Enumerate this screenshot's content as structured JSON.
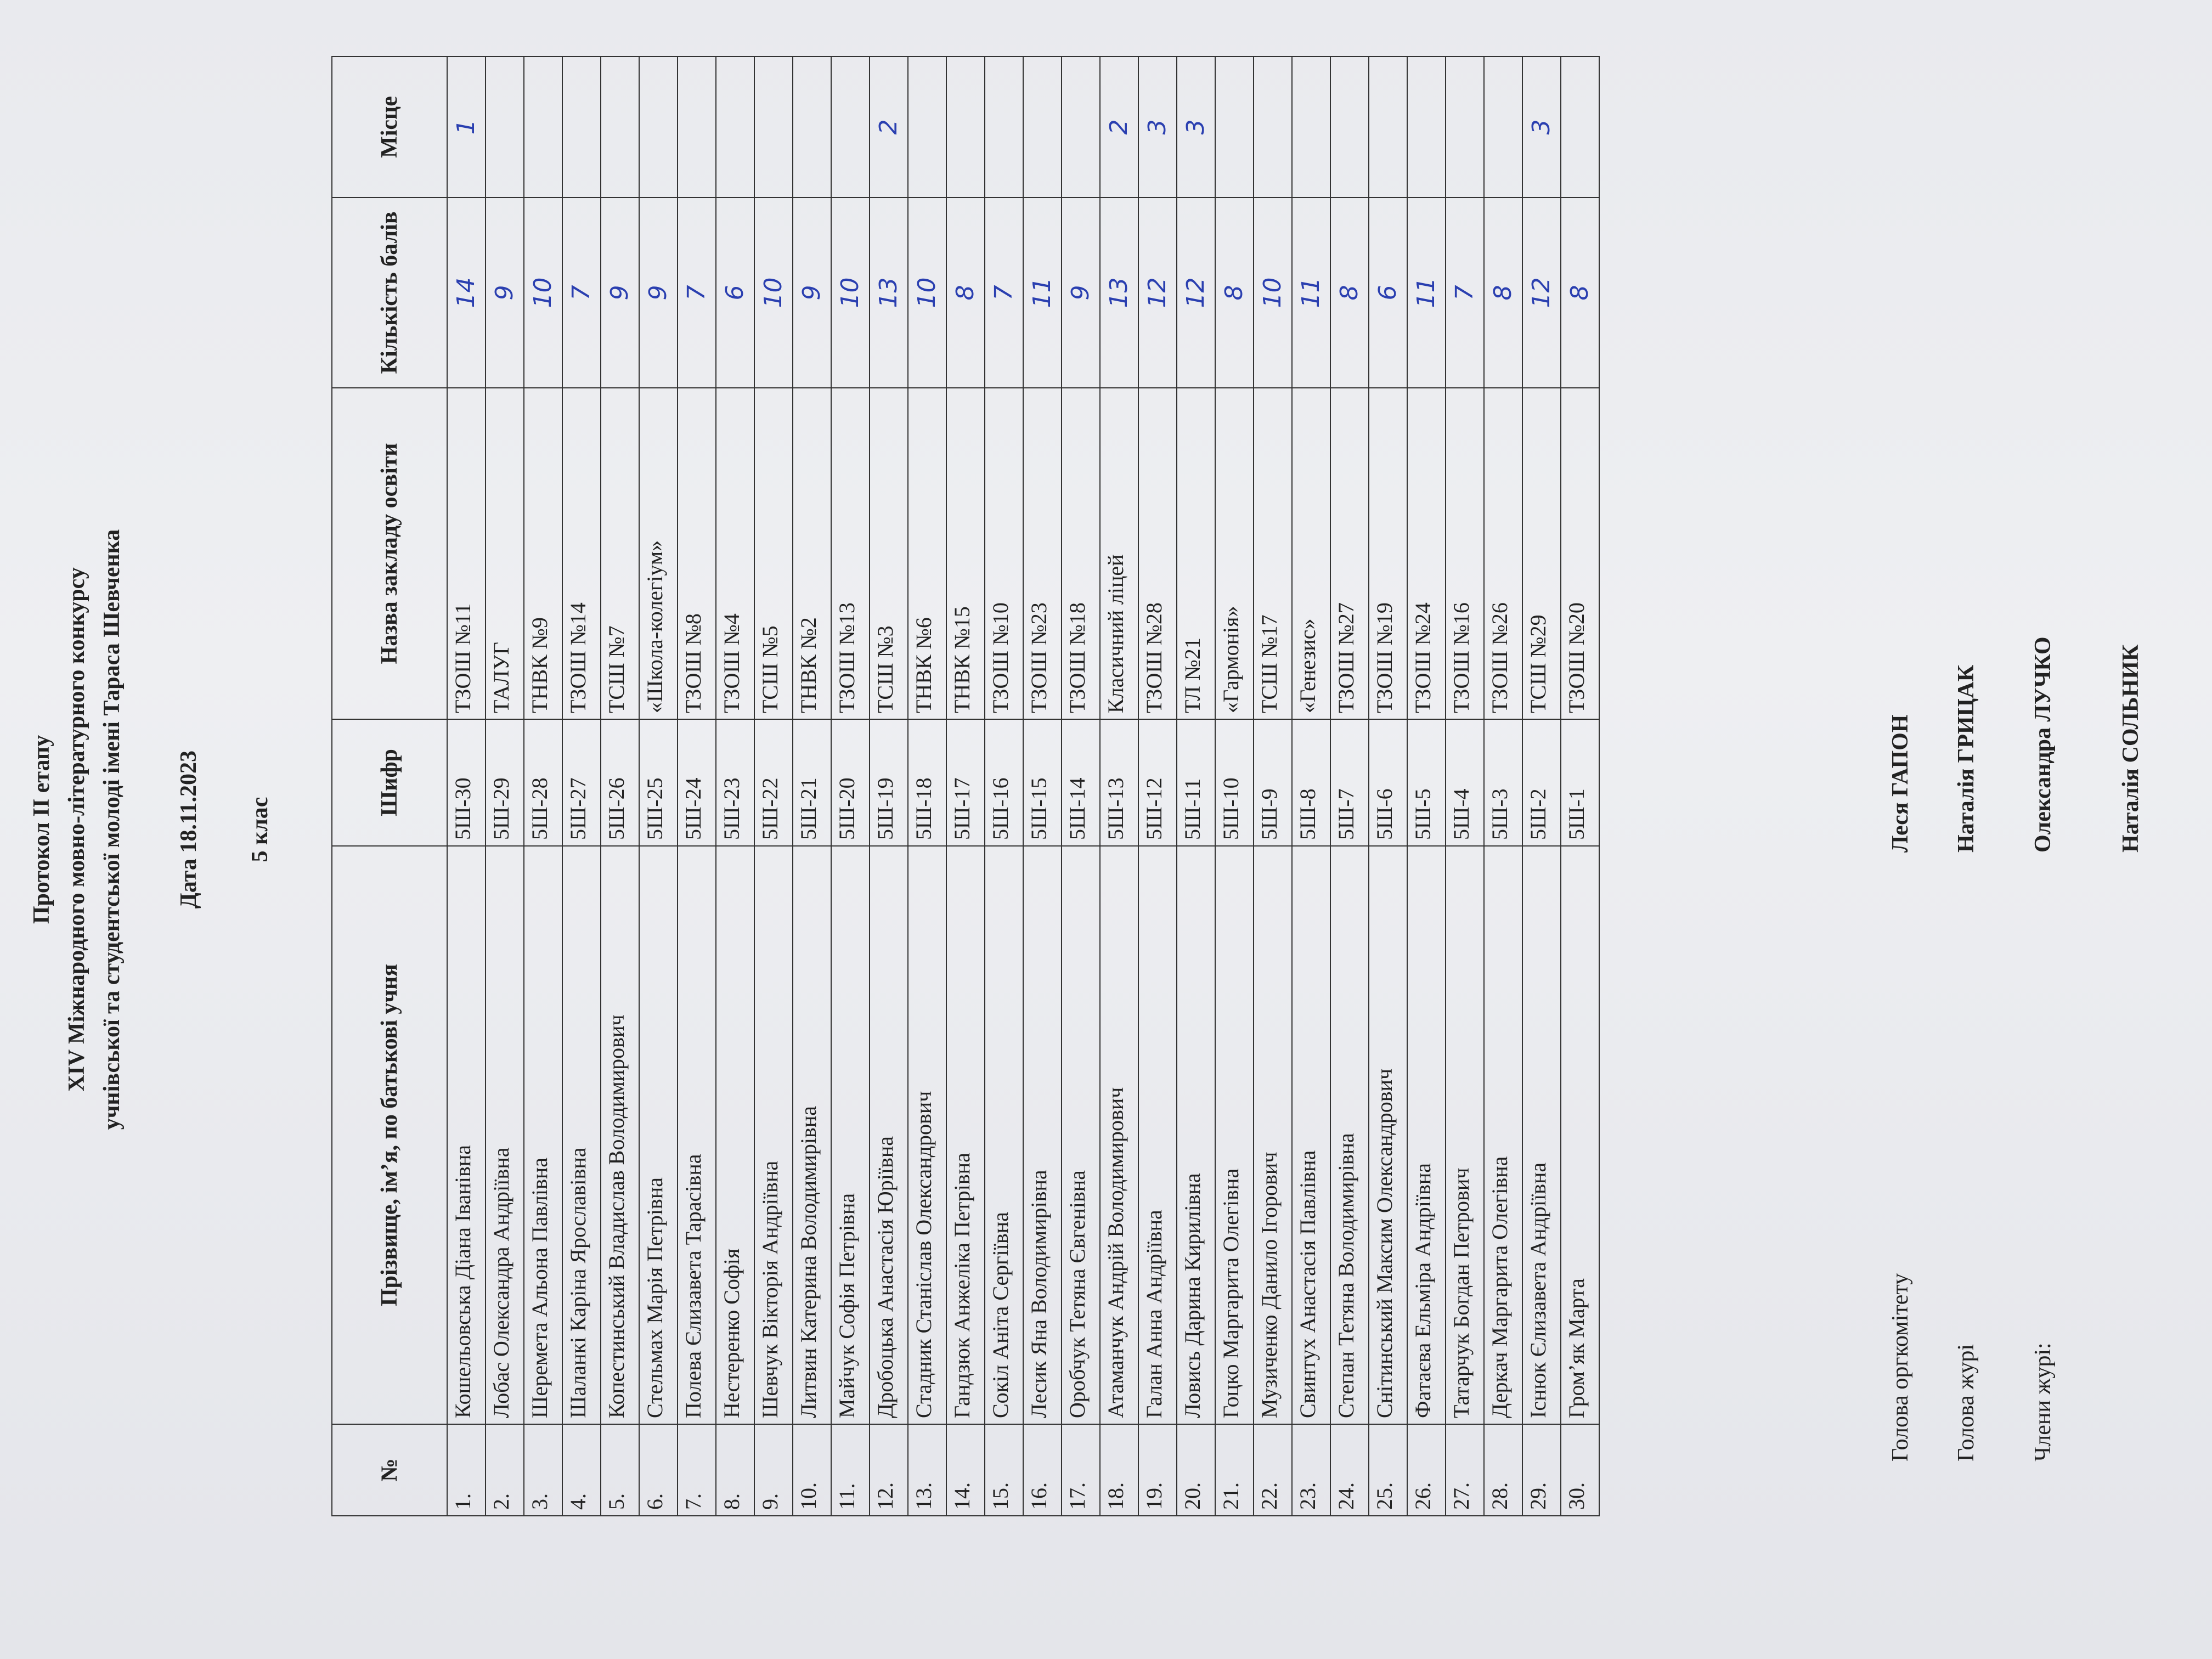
{
  "header": {
    "lines": [
      "Протокол ІІ етапу",
      "XIV Міжнародного мовно-літературного конкурсу",
      "учнівської та студентської молоді імені Тараса Шевченка"
    ],
    "date": "Дата 18.11.2023",
    "class": "5 клас"
  },
  "table": {
    "columns": [
      "№",
      "Прізвище, ім’я, по батькові учня",
      "Шифр",
      "Назва закладу освіти",
      "Кількість балів",
      "Місце"
    ],
    "rows": [
      [
        "1.",
        "Кошельовська Діана Іванівна",
        "5Ш-30",
        "ТЗОШ №11",
        "14",
        "1"
      ],
      [
        "2.",
        "Лобас Олександра Андріївна",
        "5Ш-29",
        "ТАЛУГ",
        "9",
        null
      ],
      [
        "3.",
        "Шеремета Альона Павлівна",
        "5Ш-28",
        "ТНВК №9",
        "10",
        null
      ],
      [
        "4.",
        "Шаланкі Каріна Ярославівна",
        "5Ш-27",
        "ТЗОШ №14",
        "7",
        null
      ],
      [
        "5.",
        "Копестинський Владислав Володимирович",
        "5Ш-26",
        "ТСШ №7",
        "9",
        null
      ],
      [
        "6.",
        "Стельмах Марія Петрівна",
        "5Ш-25",
        "«Школа-колегіум»",
        "9",
        null
      ],
      [
        "7.",
        "Полева Єлизавета Тарасівна",
        "5Ш-24",
        "ТЗОШ №8",
        "7",
        null
      ],
      [
        "8.",
        "Нестеренко Софія",
        "5Ш-23",
        "ТЗОШ №4",
        "6",
        null
      ],
      [
        "9.",
        "Шевчук Вікторія Андріївна",
        "5Ш-22",
        "ТСШ №5",
        "10",
        null
      ],
      [
        "10.",
        "Литвин Катерина Володимирівна",
        "5Ш-21",
        "ТНВК №2",
        "9",
        null
      ],
      [
        "11.",
        "Майчук Софія Петрівна",
        "5Ш-20",
        "ТЗОШ №13",
        "10",
        null
      ],
      [
        "12.",
        "Дробоцька Анастасія Юріївна",
        "5Ш-19",
        "ТСШ №3",
        "13",
        "2"
      ],
      [
        "13.",
        "Стадник Станіслав Олександрович",
        "5Ш-18",
        "ТНВК №6",
        "10",
        null
      ],
      [
        "14.",
        "Гандзюк Анжеліка Петрівна",
        "5Ш-17",
        "ТНВК №15",
        "8",
        null
      ],
      [
        "15.",
        "Сокіл Аніта Сергіївна",
        "5Ш-16",
        "ТЗОШ №10",
        "7",
        null
      ],
      [
        "16.",
        "Лесик Яна Володимирівна",
        "5Ш-15",
        "ТЗОШ №23",
        "11",
        null
      ],
      [
        "17.",
        "Оробчук Тетяна Євгенівна",
        "5Ш-14",
        "ТЗОШ №18",
        "9",
        null
      ],
      [
        "18.",
        "Атаманчук Андрій Володимирович",
        "5Ш-13",
        "Класичний ліцей",
        "13",
        "2"
      ],
      [
        "19.",
        "Галан Анна Андріївна",
        "5Ш-12",
        "ТЗОШ №28",
        "12",
        "3"
      ],
      [
        "20.",
        "Ловись Дарина Кирилівна",
        "5Ш-11",
        "ТЛ №21",
        "12",
        "3"
      ],
      [
        "21.",
        "Гоцко Маргарита Олегівна",
        "5Ш-10",
        "«Гармонія»",
        "8",
        null
      ],
      [
        "22.",
        "Музиченко Данило Ігорович",
        "5Ш-9",
        "ТСШ №17",
        "10",
        null
      ],
      [
        "23.",
        "Свинтух Анастасія Павлівна",
        "5Ш-8",
        "«Генезис»",
        "11",
        null
      ],
      [
        "24.",
        "Степан Тетяна Володимирівна",
        "5Ш-7",
        "ТЗОШ №27",
        "8",
        null
      ],
      [
        "25.",
        "Снітинський Максим Олександрович",
        "5Ш-6",
        "ТЗОШ №19",
        "6",
        null
      ],
      [
        "26.",
        "Фатаєва Ельміра Андріївна",
        "5Ш-5",
        "ТЗОШ №24",
        "11",
        null
      ],
      [
        "27.",
        "Татарчук Богдан Петрович",
        "5Ш-4",
        "ТЗОШ №16",
        "7",
        null
      ],
      [
        "28.",
        "Деркач Маргарита Олегівна",
        "5Ш-3",
        "ТЗОШ №26",
        "8",
        null
      ],
      [
        "29.",
        "Існюк Єлизавета Андріївна",
        "5Ш-2",
        "ТСШ №29",
        "12",
        "3"
      ],
      [
        "30.",
        "Гром’як Марта",
        "5Ш-1",
        "ТЗОШ №20",
        "8",
        null
      ]
    ]
  },
  "signatures": [
    {
      "role": "Голова оргкомітету",
      "name": "Леся ГАПОН"
    },
    {
      "role": "Голова журі",
      "name": "Наталія ГРИЦАК"
    },
    {
      "role": "Члени журі:",
      "name": "Олександра  ЛУЧКО"
    },
    {
      "name": "Наталія СОЛЬНИК"
    }
  ]
}
